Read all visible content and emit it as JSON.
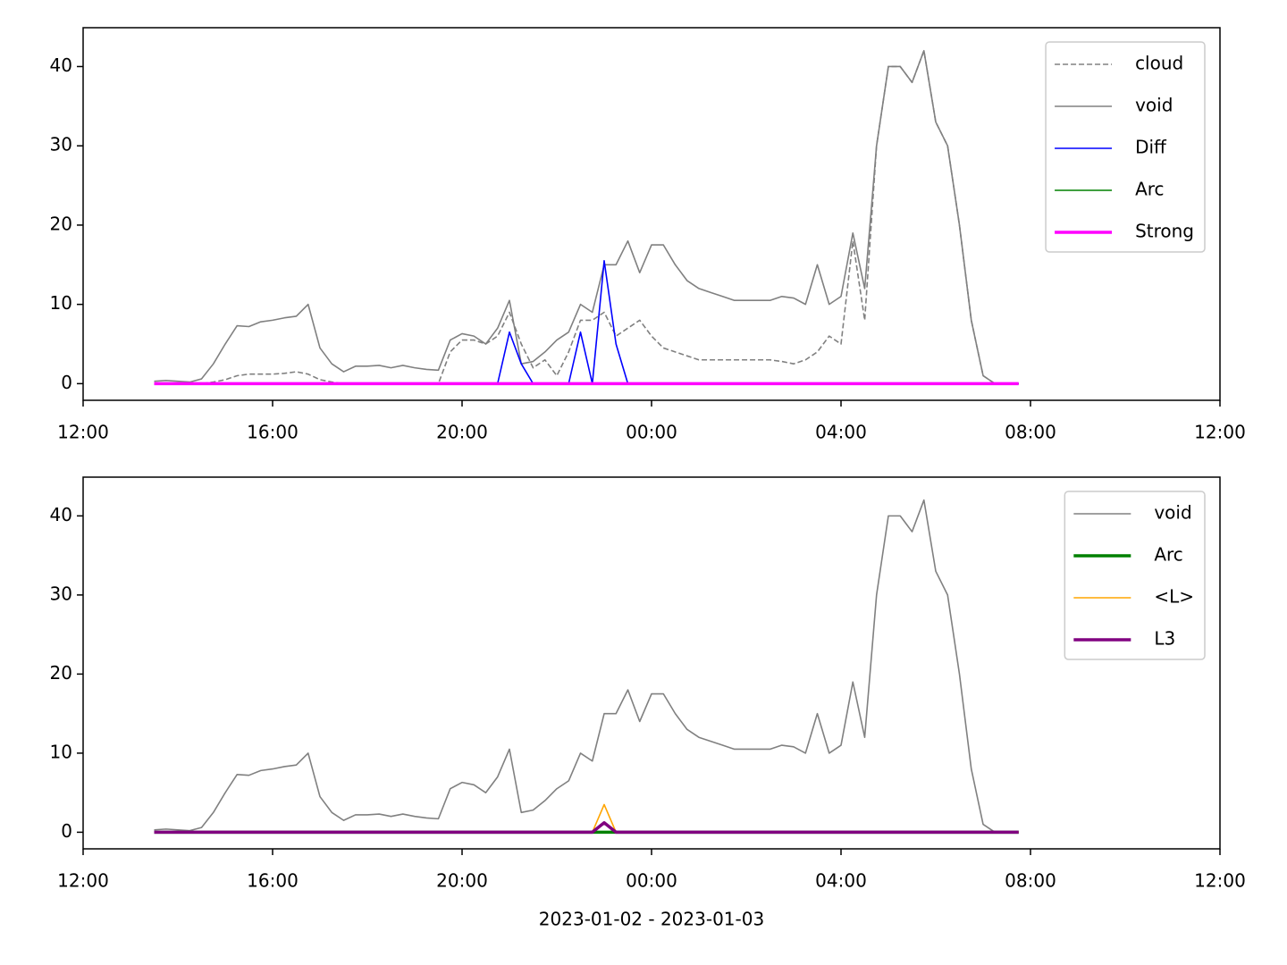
{
  "chart_data": [
    {
      "type": "line",
      "legend": "upper right",
      "x": [
        13.5,
        13.75,
        14,
        14.25,
        14.5,
        14.75,
        15,
        15.25,
        15.5,
        15.75,
        16,
        16.25,
        16.5,
        16.75,
        17,
        17.25,
        17.5,
        17.75,
        18,
        18.25,
        18.5,
        18.75,
        19,
        19.25,
        19.5,
        19.75,
        20,
        20.25,
        20.5,
        20.75,
        21,
        21.25,
        21.5,
        21.75,
        22,
        22.25,
        22.5,
        22.75,
        23,
        23.25,
        23.5,
        23.75,
        24,
        24.25,
        24.5,
        24.75,
        25,
        25.25,
        25.5,
        25.75,
        26,
        26.25,
        26.5,
        26.75,
        27,
        27.25,
        27.5,
        27.75,
        28,
        28.25,
        28.5,
        28.75,
        29,
        29.25,
        29.5,
        29.75,
        30,
        30.25,
        30.5,
        30.75,
        31,
        31.25,
        31.5,
        31.75
      ],
      "xlim": [
        12,
        36
      ],
      "xticks": [
        {
          "value": 12,
          "label": "12:00"
        },
        {
          "value": 16,
          "label": "16:00"
        },
        {
          "value": 20,
          "label": "20:00"
        },
        {
          "value": 24,
          "label": "00:00"
        },
        {
          "value": 28,
          "label": "04:00"
        },
        {
          "value": 32,
          "label": "08:00"
        },
        {
          "value": 36,
          "label": "12:00"
        }
      ],
      "ylim": [
        -2.1,
        44.9
      ],
      "yticks": [
        0,
        10,
        20,
        30,
        40
      ],
      "series": [
        {
          "name": "cloud",
          "color": "#808080",
          "style": "dashed",
          "width": "thin",
          "values": [
            0,
            0,
            0,
            0,
            0,
            0.2,
            0.5,
            1,
            1.2,
            1.2,
            1.2,
            1.3,
            1.5,
            1.2,
            0.5,
            0.2,
            0,
            0,
            0,
            0,
            0,
            0,
            0,
            0,
            0,
            4,
            5.5,
            5.5,
            5,
            6,
            9,
            5,
            2,
            3,
            1,
            4,
            8,
            8,
            9,
            6,
            7,
            8,
            6,
            4.5,
            4,
            3.5,
            3,
            3,
            3,
            3,
            3,
            3,
            3,
            2.8,
            2.5,
            3,
            4,
            6,
            5,
            18,
            8,
            30,
            40,
            40,
            38,
            42,
            33,
            30,
            20,
            8,
            1,
            0,
            0,
            0
          ]
        },
        {
          "name": "void",
          "color": "#808080",
          "style": "solid",
          "width": "thin",
          "values": [
            0.3,
            0.4,
            0.3,
            0.2,
            0.6,
            2.5,
            5,
            7.3,
            7.2,
            7.8,
            8,
            8.3,
            8.5,
            10,
            4.5,
            2.5,
            1.5,
            2.2,
            2.2,
            2.3,
            2,
            2.3,
            2,
            1.8,
            1.7,
            5.5,
            6.3,
            6,
            5,
            7,
            10.5,
            2.5,
            2.8,
            4,
            5.5,
            6.5,
            10,
            9,
            15,
            15,
            18,
            14,
            17.5,
            17.5,
            15,
            13,
            12,
            11.5,
            11,
            10.5,
            10.5,
            10.5,
            10.5,
            11,
            10.8,
            10,
            15,
            10,
            11,
            19,
            12,
            30,
            40,
            40,
            38,
            42,
            33,
            30,
            20,
            8,
            1,
            0,
            0,
            0
          ]
        },
        {
          "name": "Diff",
          "color": "#0000ff",
          "style": "solid",
          "width": "thin",
          "values": [
            0,
            0,
            0,
            0,
            0,
            0,
            0,
            0,
            0,
            0,
            0,
            0,
            0,
            0,
            0,
            0,
            0,
            0,
            0,
            0,
            0,
            0,
            0,
            0,
            0,
            0,
            0,
            0,
            0,
            0,
            6.5,
            2.5,
            0,
            0,
            0,
            0,
            6.5,
            0,
            15.5,
            5,
            0,
            0,
            0,
            0,
            0,
            0,
            0,
            0,
            0,
            0,
            0,
            0,
            0,
            0,
            0,
            0,
            0,
            0,
            0,
            0,
            0,
            0,
            0,
            0,
            0,
            0,
            0,
            0,
            0,
            0,
            0,
            0,
            0,
            0
          ]
        },
        {
          "name": "Arc",
          "color": "#008000",
          "style": "solid",
          "width": "thin",
          "values": [
            0,
            0,
            0,
            0,
            0,
            0,
            0,
            0,
            0,
            0,
            0,
            0,
            0,
            0,
            0,
            0,
            0,
            0,
            0,
            0,
            0,
            0,
            0,
            0,
            0,
            0,
            0,
            0,
            0,
            0,
            0,
            0,
            0,
            0,
            0,
            0,
            0,
            0,
            0,
            0,
            0,
            0,
            0,
            0,
            0,
            0,
            0,
            0,
            0,
            0,
            0,
            0,
            0,
            0,
            0,
            0,
            0,
            0,
            0,
            0,
            0,
            0,
            0,
            0,
            0,
            0,
            0,
            0,
            0,
            0,
            0,
            0,
            0,
            0
          ]
        },
        {
          "name": "Strong",
          "color": "#ff00ff",
          "style": "solid",
          "width": "thick",
          "values": [
            0,
            0,
            0,
            0,
            0,
            0,
            0,
            0,
            0,
            0,
            0,
            0,
            0,
            0,
            0,
            0,
            0,
            0,
            0,
            0,
            0,
            0,
            0,
            0,
            0,
            0,
            0,
            0,
            0,
            0,
            0,
            0,
            0,
            0,
            0,
            0,
            0,
            0,
            0,
            0,
            0,
            0,
            0,
            0,
            0,
            0,
            0,
            0,
            0,
            0,
            0,
            0,
            0,
            0,
            0,
            0,
            0,
            0,
            0,
            0,
            0,
            0,
            0,
            0,
            0,
            0,
            0,
            0,
            0,
            0,
            0,
            0,
            0,
            0
          ]
        }
      ]
    },
    {
      "type": "line",
      "legend": "upper right",
      "xlabel": "2023-01-02 - 2023-01-03",
      "x": [
        13.5,
        13.75,
        14,
        14.25,
        14.5,
        14.75,
        15,
        15.25,
        15.5,
        15.75,
        16,
        16.25,
        16.5,
        16.75,
        17,
        17.25,
        17.5,
        17.75,
        18,
        18.25,
        18.5,
        18.75,
        19,
        19.25,
        19.5,
        19.75,
        20,
        20.25,
        20.5,
        20.75,
        21,
        21.25,
        21.5,
        21.75,
        22,
        22.25,
        22.5,
        22.75,
        23,
        23.25,
        23.5,
        23.75,
        24,
        24.25,
        24.5,
        24.75,
        25,
        25.25,
        25.5,
        25.75,
        26,
        26.25,
        26.5,
        26.75,
        27,
        27.25,
        27.5,
        27.75,
        28,
        28.25,
        28.5,
        28.75,
        29,
        29.25,
        29.5,
        29.75,
        30,
        30.25,
        30.5,
        30.75,
        31,
        31.25,
        31.5,
        31.75
      ],
      "xlim": [
        12,
        36
      ],
      "xticks": [
        {
          "value": 12,
          "label": "12:00"
        },
        {
          "value": 16,
          "label": "16:00"
        },
        {
          "value": 20,
          "label": "20:00"
        },
        {
          "value": 24,
          "label": "00:00"
        },
        {
          "value": 28,
          "label": "04:00"
        },
        {
          "value": 32,
          "label": "08:00"
        },
        {
          "value": 36,
          "label": "12:00"
        }
      ],
      "ylim": [
        -2.1,
        44.9
      ],
      "yticks": [
        0,
        10,
        20,
        30,
        40
      ],
      "series": [
        {
          "name": "void",
          "color": "#808080",
          "style": "solid",
          "width": "thin",
          "values": [
            0.3,
            0.4,
            0.3,
            0.2,
            0.6,
            2.5,
            5,
            7.3,
            7.2,
            7.8,
            8,
            8.3,
            8.5,
            10,
            4.5,
            2.5,
            1.5,
            2.2,
            2.2,
            2.3,
            2,
            2.3,
            2,
            1.8,
            1.7,
            5.5,
            6.3,
            6,
            5,
            7,
            10.5,
            2.5,
            2.8,
            4,
            5.5,
            6.5,
            10,
            9,
            15,
            15,
            18,
            14,
            17.5,
            17.5,
            15,
            13,
            12,
            11.5,
            11,
            10.5,
            10.5,
            10.5,
            10.5,
            11,
            10.8,
            10,
            15,
            10,
            11,
            19,
            12,
            30,
            40,
            40,
            38,
            42,
            33,
            30,
            20,
            8,
            1,
            0,
            0,
            0
          ]
        },
        {
          "name": "Arc",
          "color": "#008000",
          "style": "solid",
          "width": "thick",
          "values": [
            0,
            0,
            0,
            0,
            0,
            0,
            0,
            0,
            0,
            0,
            0,
            0,
            0,
            0,
            0,
            0,
            0,
            0,
            0,
            0,
            0,
            0,
            0,
            0,
            0,
            0,
            0,
            0,
            0,
            0,
            0,
            0,
            0,
            0,
            0,
            0,
            0,
            0,
            0,
            0,
            0,
            0,
            0,
            0,
            0,
            0,
            0,
            0,
            0,
            0,
            0,
            0,
            0,
            0,
            0,
            0,
            0,
            0,
            0,
            0,
            0,
            0,
            0,
            0,
            0,
            0,
            0,
            0,
            0,
            0,
            0,
            0,
            0,
            0
          ]
        },
        {
          "name": "<L>",
          "color": "#ffa500",
          "style": "solid",
          "width": "thin",
          "values": [
            0,
            0,
            0,
            0,
            0,
            0,
            0,
            0,
            0,
            0,
            0,
            0,
            0,
            0,
            0,
            0,
            0,
            0,
            0,
            0,
            0,
            0,
            0,
            0,
            0,
            0,
            0,
            0,
            0,
            0,
            0,
            0,
            0,
            0,
            0,
            0,
            0,
            0,
            3.5,
            0,
            0,
            0,
            0,
            0,
            0,
            0,
            0,
            0,
            0,
            0,
            0,
            0,
            0,
            0,
            0,
            0,
            0,
            0,
            0,
            0,
            0,
            0,
            0,
            0,
            0,
            0,
            0,
            0,
            0,
            0,
            0,
            0,
            0,
            0
          ]
        },
        {
          "name": "L3",
          "color": "#800080",
          "style": "solid",
          "width": "thick",
          "values": [
            0,
            0,
            0,
            0,
            0,
            0,
            0,
            0,
            0,
            0,
            0,
            0,
            0,
            0,
            0,
            0,
            0,
            0,
            0,
            0,
            0,
            0,
            0,
            0,
            0,
            0,
            0,
            0,
            0,
            0,
            0,
            0,
            0,
            0,
            0,
            0,
            0,
            0,
            1.2,
            0,
            0,
            0,
            0,
            0,
            0,
            0,
            0,
            0,
            0,
            0,
            0,
            0,
            0,
            0,
            0,
            0,
            0,
            0,
            0,
            0,
            0,
            0,
            0,
            0,
            0,
            0,
            0,
            0,
            0,
            0,
            0,
            0,
            0,
            0
          ]
        }
      ]
    }
  ]
}
